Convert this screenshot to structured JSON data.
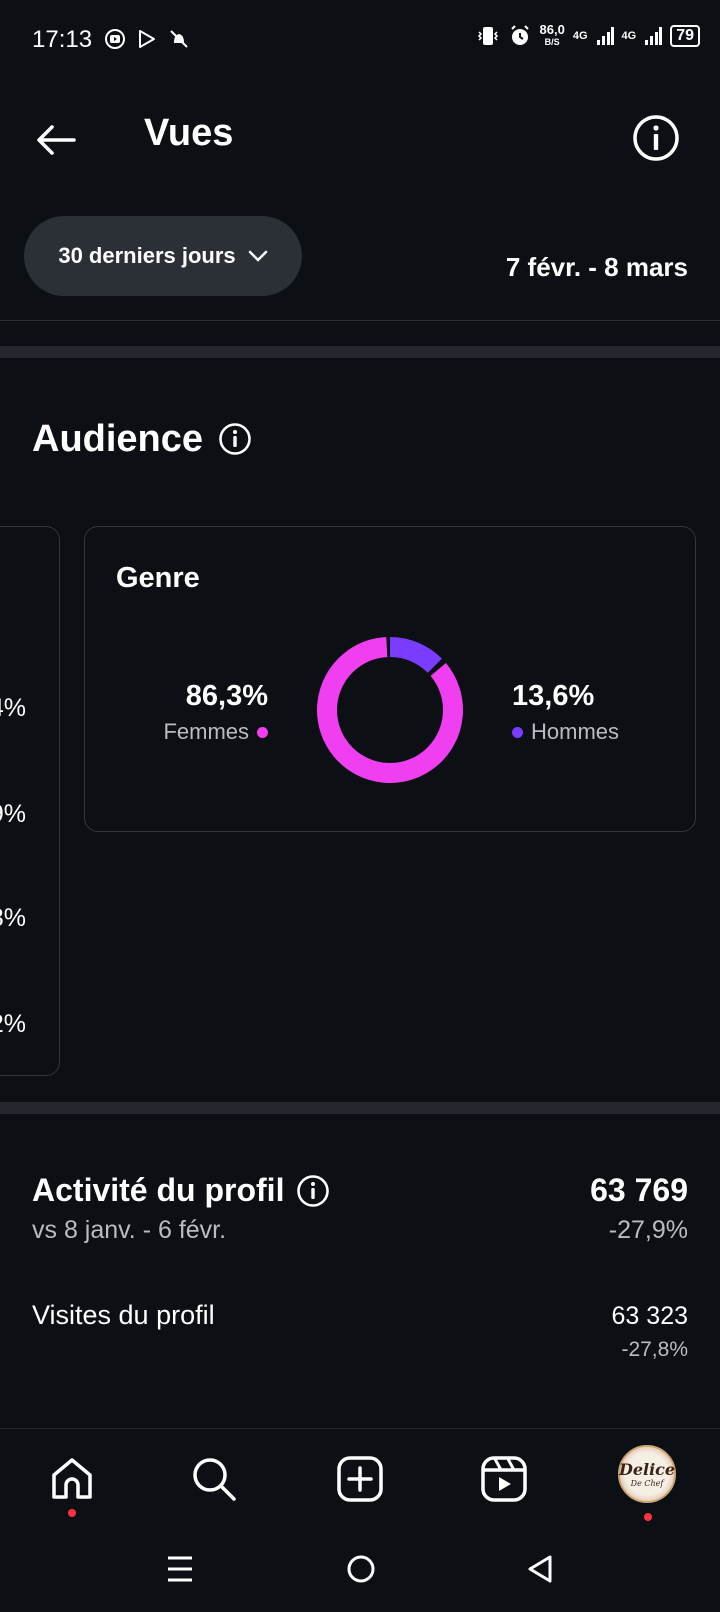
{
  "status_bar": {
    "time": "17:13",
    "net_speed_value": "86,0",
    "net_speed_unit": "B/S",
    "sim1": "4G",
    "sim2": "4G",
    "battery": "79"
  },
  "header": {
    "title": "Vues"
  },
  "filter": {
    "range_label": "30 derniers jours",
    "date_range": "7 févr. - 8 mars"
  },
  "audience": {
    "title": "Audience",
    "left_card_percentages": [
      "4%",
      "9%",
      "3%",
      "2%"
    ],
    "genre": {
      "title": "Genre",
      "women": {
        "value": "86,3%",
        "label": "Femmes",
        "fraction": 0.863
      },
      "men": {
        "value": "13,6%",
        "label": "Hommes",
        "fraction": 0.136
      },
      "colors": {
        "women": "#f03ff0",
        "men": "#7a3cff"
      }
    }
  },
  "profile_activity": {
    "title": "Activité du profil",
    "comparison": "vs 8 janv. - 6 févr.",
    "total": "63 769",
    "total_change": "-27,9%",
    "visits_label": "Visites du profil",
    "visits_value": "63 323",
    "visits_change": "-27,8%"
  },
  "bottom_nav": {
    "avatar_text_main": "Delice",
    "avatar_text_sub": "De Chef"
  }
}
